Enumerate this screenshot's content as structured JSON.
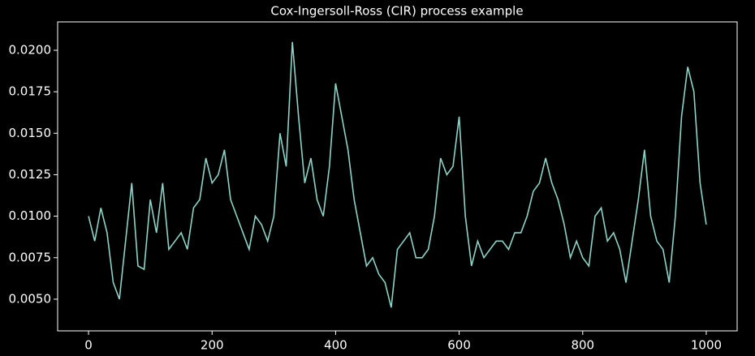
{
  "chart_data": {
    "type": "line",
    "title": "Cox-Ingersoll-Ross (CIR) process example",
    "x": [
      0,
      10,
      20,
      30,
      40,
      50,
      60,
      70,
      80,
      90,
      100,
      110,
      120,
      130,
      140,
      150,
      160,
      170,
      180,
      190,
      200,
      210,
      220,
      230,
      240,
      250,
      260,
      270,
      280,
      290,
      300,
      310,
      320,
      330,
      340,
      350,
      360,
      370,
      380,
      390,
      400,
      410,
      420,
      430,
      440,
      450,
      460,
      470,
      480,
      490,
      500,
      510,
      520,
      530,
      540,
      550,
      560,
      570,
      580,
      590,
      600,
      610,
      620,
      630,
      640,
      650,
      660,
      670,
      680,
      690,
      700,
      710,
      720,
      730,
      740,
      750,
      760,
      770,
      780,
      790,
      800,
      810,
      820,
      830,
      840,
      850,
      860,
      870,
      880,
      890,
      900,
      910,
      920,
      930,
      940,
      950,
      960,
      970,
      980,
      990,
      1000
    ],
    "series": [
      {
        "name": "CIR",
        "color": "#8dd3c7",
        "values": [
          0.01,
          0.0085,
          0.0105,
          0.009,
          0.006,
          0.005,
          0.0085,
          0.012,
          0.007,
          0.0068,
          0.011,
          0.009,
          0.012,
          0.008,
          0.0085,
          0.009,
          0.008,
          0.0105,
          0.011,
          0.0135,
          0.012,
          0.0125,
          0.014,
          0.011,
          0.01,
          0.009,
          0.008,
          0.01,
          0.0095,
          0.0085,
          0.01,
          0.015,
          0.013,
          0.0205,
          0.016,
          0.012,
          0.0135,
          0.011,
          0.01,
          0.013,
          0.018,
          0.016,
          0.014,
          0.011,
          0.009,
          0.007,
          0.0075,
          0.0065,
          0.006,
          0.0045,
          0.008,
          0.0085,
          0.009,
          0.0075,
          0.0075,
          0.008,
          0.01,
          0.0135,
          0.0125,
          0.013,
          0.016,
          0.01,
          0.007,
          0.0085,
          0.0075,
          0.008,
          0.0085,
          0.0085,
          0.008,
          0.009,
          0.009,
          0.01,
          0.0115,
          0.012,
          0.0135,
          0.012,
          0.011,
          0.0095,
          0.0075,
          0.0085,
          0.0075,
          0.007,
          0.01,
          0.0105,
          0.0085,
          0.009,
          0.008,
          0.006,
          0.0085,
          0.011,
          0.014,
          0.01,
          0.0085,
          0.008,
          0.006,
          0.01,
          0.016,
          0.019,
          0.0175,
          0.012,
          0.0095
        ]
      }
    ],
    "xlim": [
      -50,
      1050
    ],
    "ylim": [
      0.00309,
      0.02171
    ],
    "xticks": [
      0,
      200,
      400,
      600,
      800,
      1000
    ],
    "yticks": [
      {
        "value": 0.005,
        "label": "0.0050"
      },
      {
        "value": 0.0075,
        "label": "0.0075"
      },
      {
        "value": 0.01,
        "label": "0.0100"
      },
      {
        "value": 0.0125,
        "label": "0.0125"
      },
      {
        "value": 0.015,
        "label": "0.0150"
      },
      {
        "value": 0.0175,
        "label": "0.0175"
      },
      {
        "value": 0.02,
        "label": "0.0200"
      }
    ]
  }
}
